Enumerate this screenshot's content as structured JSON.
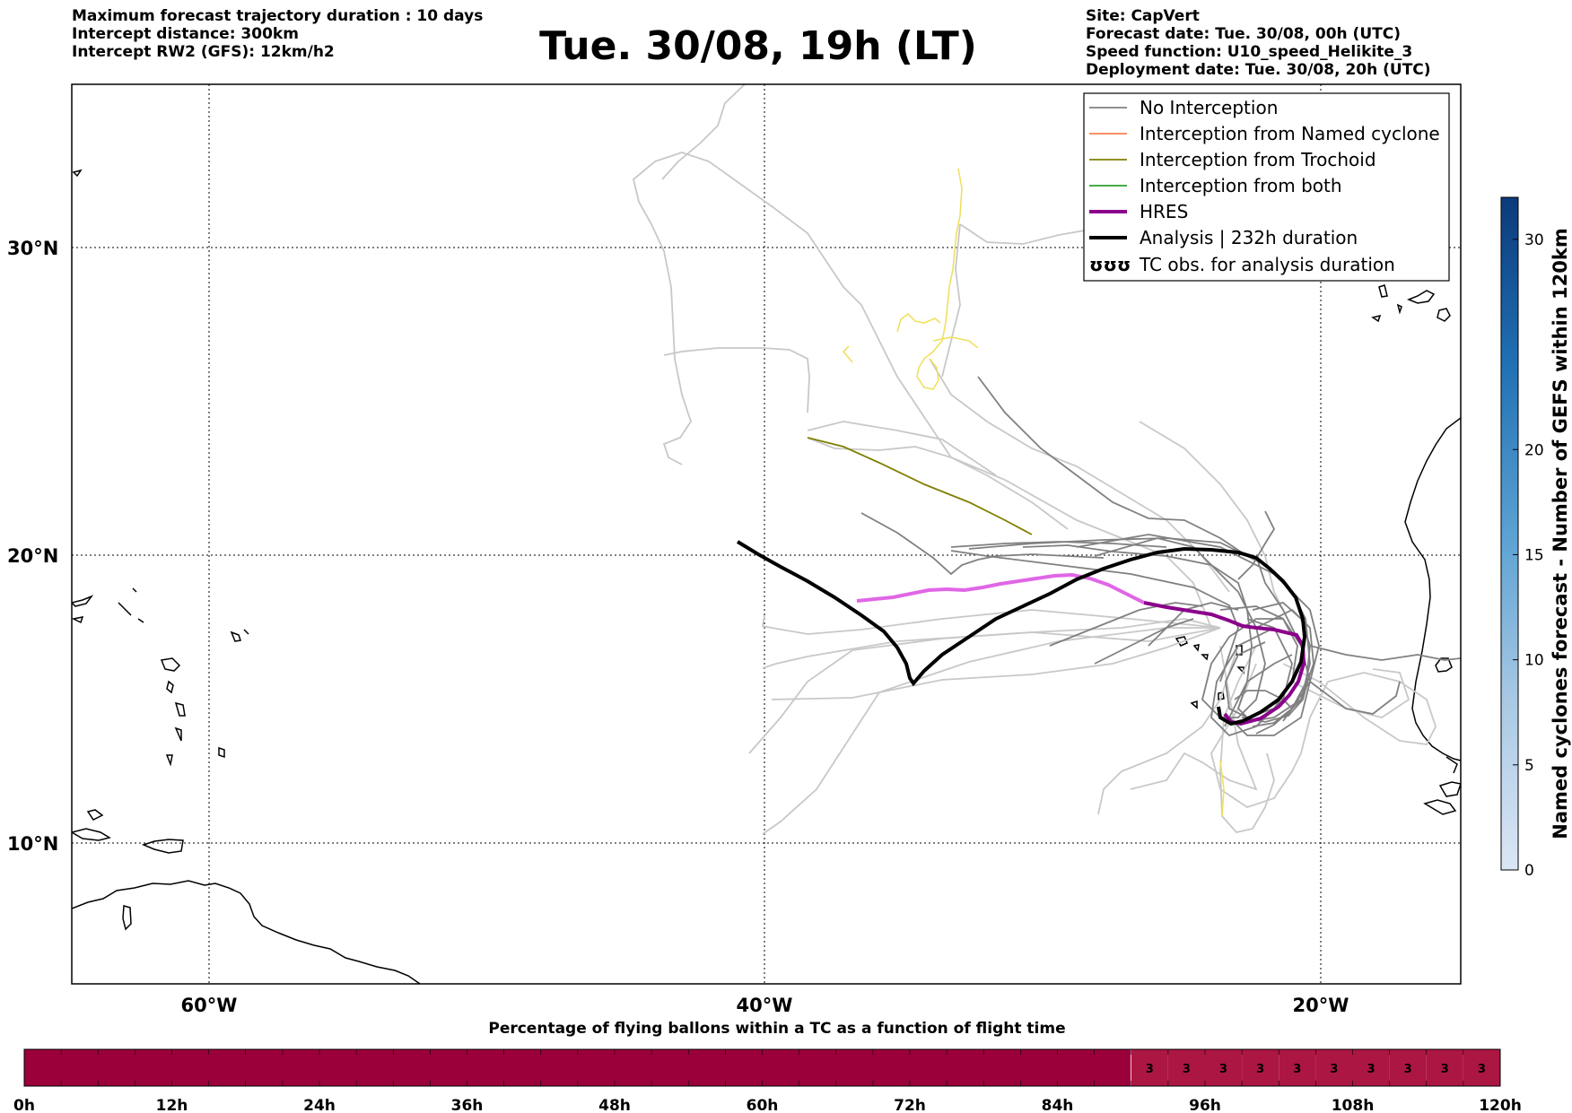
{
  "header": {
    "left_lines": [
      "Maximum forecast trajectory duration : 10 days",
      "Intercept distance: 300km",
      "Intercept RW2 (GFS):  12km/h2"
    ],
    "title": "Tue. 30/08, 19h (LT)",
    "right_lines": [
      "Site: CapVert",
      "Forecast date: Tue. 30/08, 00h (UTC)",
      "Speed function: U10_speed_Helikite_3",
      "Deployment date: Tue. 30/08, 20h (UTC)"
    ]
  },
  "map": {
    "lat_labels": [
      "30°N",
      "20°N",
      "10°N"
    ],
    "lon_labels": [
      "60°W",
      "40°W",
      "20°W"
    ],
    "legend": [
      {
        "label": "No Interception",
        "color": "#808080"
      },
      {
        "label": "Interception from Named cyclone",
        "color": "#ff7f50"
      },
      {
        "label": "Interception from Trochoid",
        "color": "#808000"
      },
      {
        "label": "Interception from both",
        "color": "#2ca02c"
      },
      {
        "label": "HRES",
        "color": "#8b008b"
      },
      {
        "label": "Analysis | 232h duration",
        "color": "#000000"
      },
      {
        "label": "TC obs. for analysis duration",
        "color": "#000000",
        "icon": "ʊʊʊ"
      }
    ],
    "colors": {
      "ensemble_gray": "#808080",
      "ensemble_light": "#c8c8c8",
      "trochoid": "#808000",
      "yellow_track": "#f0e060",
      "hres": "#8b008b",
      "hres_light": "#e066e6",
      "analysis": "#000000"
    }
  },
  "colorbar_right": {
    "title": "Named cyclones forecast - Number of GEFS within 120km",
    "ticks": [
      "0",
      "5",
      "10",
      "15",
      "20",
      "30"
    ],
    "range": [
      0,
      32
    ]
  },
  "bottom_bar": {
    "title": "Percentage of flying ballons within a TC as a function of flight time",
    "tick_labels": [
      "0h",
      "12h",
      "24h",
      "36h",
      "48h",
      "60h",
      "72h",
      "84h",
      "96h",
      "108h",
      "120h"
    ],
    "cell_values": [
      "3",
      "3",
      "3",
      "3",
      "3",
      "3",
      "3",
      "3",
      "3",
      "3"
    ],
    "dark_color": "#9b003a",
    "light_color": "#ac1642"
  }
}
